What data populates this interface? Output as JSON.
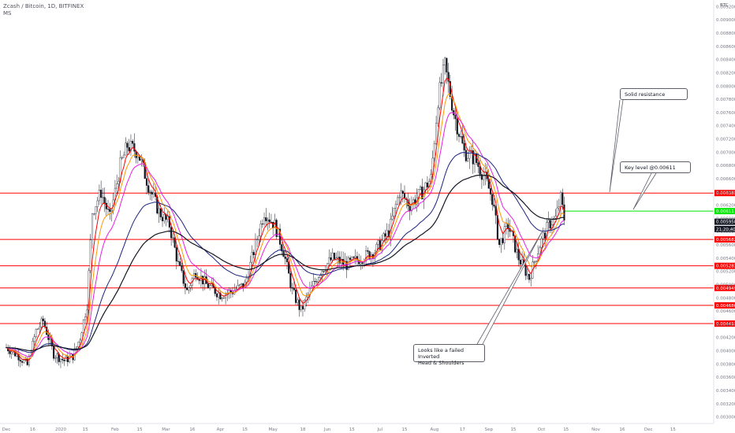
{
  "header": {
    "title": "Zcash / Bitcoin, 1D, BITFINEX",
    "indicator": "MS"
  },
  "price_axis": {
    "unit": "BTC"
  },
  "annotations": {
    "resistance": "Solid resistance",
    "key_level": "Key level @0.00611",
    "pattern_line1": "Looks like a failed Inverted",
    "pattern_line2": "Head & Shoulders"
  },
  "colors": {
    "up_candle": "#131722",
    "down_candle": "#131722",
    "level_line": "#ff0000",
    "key_line": "#00e600",
    "ema_fast": "#ff0000",
    "ema_mid": "#ff9800",
    "ema_slow": "#e91ee6",
    "ma_long_1": "#131722",
    "ma_long_2": "#1a237e",
    "badge_red": "#ff0000",
    "badge_green": "#00e600",
    "badge_dark": "#131722"
  },
  "chart_data": {
    "type": "candlestick",
    "title": "Zcash / Bitcoin, 1D, BITFINEX",
    "y_unit": "BTC",
    "ylim": [
      0.0029,
      0.0093
    ],
    "y_ticks": [
      "0.003000",
      "0.003200",
      "0.003400",
      "0.003600",
      "0.003800",
      "0.004000",
      "0.004200",
      "0.004400",
      "0.004600",
      "0.004800",
      "0.005000",
      "0.005200",
      "0.005400",
      "0.005600",
      "0.005800",
      "0.006000",
      "0.006200",
      "0.006400",
      "0.006600",
      "0.006800",
      "0.007000",
      "0.007200",
      "0.007400",
      "0.007600",
      "0.007800",
      "0.008000",
      "0.008200",
      "0.008400",
      "0.008600",
      "0.008800",
      "0.009000",
      "0.009200"
    ],
    "x_ticks": [
      "Dec",
      "16",
      "2020",
      "15",
      "Feb",
      "15",
      "Mar",
      "16",
      "Apr",
      "15",
      "May",
      "18",
      "Jun",
      "15",
      "Jul",
      "15",
      "Aug",
      "17",
      "Sep",
      "15",
      "Oct",
      "15",
      "Nov",
      "16",
      "Dec",
      "15"
    ],
    "price_path": [
      {
        "date": "2019-12-01",
        "close": 0.00405
      },
      {
        "date": "2019-12-08",
        "close": 0.00392
      },
      {
        "date": "2019-12-13",
        "close": 0.00378
      },
      {
        "date": "2019-12-18",
        "close": 0.0043
      },
      {
        "date": "2019-12-22",
        "close": 0.00445
      },
      {
        "date": "2019-12-28",
        "close": 0.00395
      },
      {
        "date": "2020-01-03",
        "close": 0.00385
      },
      {
        "date": "2020-01-08",
        "close": 0.00392
      },
      {
        "date": "2020-01-12",
        "close": 0.0042
      },
      {
        "date": "2020-01-16",
        "close": 0.0047
      },
      {
        "date": "2020-01-19",
        "close": 0.0061
      },
      {
        "date": "2020-01-24",
        "close": 0.0064
      },
      {
        "date": "2020-01-29",
        "close": 0.006
      },
      {
        "date": "2020-02-04",
        "close": 0.0068
      },
      {
        "date": "2020-02-08",
        "close": 0.0071
      },
      {
        "date": "2020-02-14",
        "close": 0.007
      },
      {
        "date": "2020-02-20",
        "close": 0.0065
      },
      {
        "date": "2020-02-26",
        "close": 0.0061
      },
      {
        "date": "2020-03-03",
        "close": 0.0059
      },
      {
        "date": "2020-03-08",
        "close": 0.0053
      },
      {
        "date": "2020-03-13",
        "close": 0.0049
      },
      {
        "date": "2020-03-18",
        "close": 0.0052
      },
      {
        "date": "2020-03-24",
        "close": 0.005
      },
      {
        "date": "2020-04-01",
        "close": 0.00485
      },
      {
        "date": "2020-04-08",
        "close": 0.0049
      },
      {
        "date": "2020-04-15",
        "close": 0.005
      },
      {
        "date": "2020-04-21",
        "close": 0.0056
      },
      {
        "date": "2020-04-26",
        "close": 0.0061
      },
      {
        "date": "2020-05-02",
        "close": 0.0059
      },
      {
        "date": "2020-05-07",
        "close": 0.0055
      },
      {
        "date": "2020-05-12",
        "close": 0.0049
      },
      {
        "date": "2020-05-17",
        "close": 0.0046
      },
      {
        "date": "2020-05-22",
        "close": 0.0049
      },
      {
        "date": "2020-05-28",
        "close": 0.0052
      },
      {
        "date": "2020-06-04",
        "close": 0.0054
      },
      {
        "date": "2020-06-12",
        "close": 0.0053
      },
      {
        "date": "2020-06-20",
        "close": 0.0054
      },
      {
        "date": "2020-06-28",
        "close": 0.0055
      },
      {
        "date": "2020-07-06",
        "close": 0.0058
      },
      {
        "date": "2020-07-12",
        "close": 0.0064
      },
      {
        "date": "2020-07-18",
        "close": 0.0062
      },
      {
        "date": "2020-07-25",
        "close": 0.0064
      },
      {
        "date": "2020-07-30",
        "close": 0.0066
      },
      {
        "date": "2020-08-03",
        "close": 0.0078
      },
      {
        "date": "2020-08-07",
        "close": 0.0083
      },
      {
        "date": "2020-08-12",
        "close": 0.0076
      },
      {
        "date": "2020-08-18",
        "close": 0.007
      },
      {
        "date": "2020-08-24",
        "close": 0.0069
      },
      {
        "date": "2020-08-30",
        "close": 0.0066
      },
      {
        "date": "2020-09-03",
        "close": 0.0063
      },
      {
        "date": "2020-09-07",
        "close": 0.0056
      },
      {
        "date": "2020-09-12",
        "close": 0.0059
      },
      {
        "date": "2020-09-18",
        "close": 0.0054
      },
      {
        "date": "2020-09-24",
        "close": 0.0051
      },
      {
        "date": "2020-09-30",
        "close": 0.0056
      },
      {
        "date": "2020-10-05",
        "close": 0.0059
      },
      {
        "date": "2020-10-09",
        "close": 0.006
      },
      {
        "date": "2020-10-12",
        "close": 0.0063
      },
      {
        "date": "2020-10-14",
        "close": 0.006
      }
    ],
    "horizontal_levels": [
      {
        "label": "0.006383",
        "value": 0.006383,
        "color": "red"
      },
      {
        "label": "0.005682",
        "value": 0.005682,
        "color": "red"
      },
      {
        "label": "0.005283",
        "value": 0.005283,
        "color": "red"
      },
      {
        "label": "0.004949",
        "value": 0.004949,
        "color": "red"
      },
      {
        "label": "0.004686",
        "value": 0.004686,
        "color": "red"
      },
      {
        "label": "0.004411",
        "value": 0.004411,
        "color": "red"
      },
      {
        "label": "0.00611",
        "value": 0.00611,
        "color": "green",
        "partial": true
      }
    ],
    "price_badges": [
      {
        "label": "0.005950",
        "value": 0.00595
      },
      {
        "label": "21:20:40",
        "value": 0.00584
      }
    ]
  }
}
